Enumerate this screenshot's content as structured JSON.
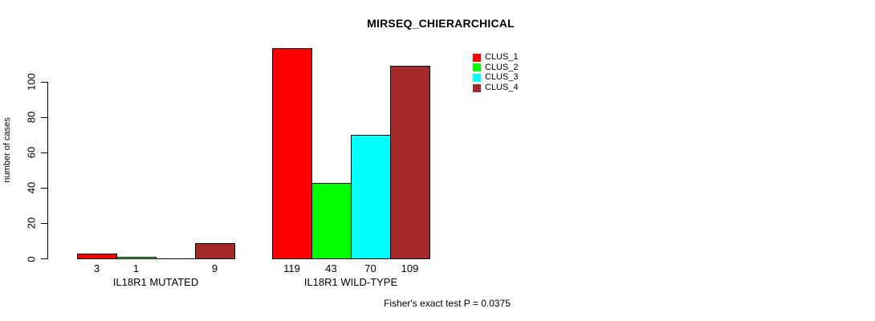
{
  "chart_data": {
    "type": "bar",
    "title": "MIRSEQ_CHIERARCHICAL",
    "ylabel": "number of cases",
    "xlabel": "",
    "ylim": [
      0,
      100
    ],
    "yticks": [
      0,
      20,
      40,
      60,
      80,
      100
    ],
    "grid": false,
    "legend_position": "top-right",
    "annotation": "Fisher's exact test P = 0.0375",
    "series": [
      {
        "name": "CLUS_1",
        "color": "#FF0000"
      },
      {
        "name": "CLUS_2",
        "color": "#00FF00"
      },
      {
        "name": "CLUS_3",
        "color": "#00FFFF"
      },
      {
        "name": "CLUS_4",
        "color": "#A52A2A"
      }
    ],
    "groups": [
      {
        "label": "IL18R1 MUTATED",
        "values": [
          3,
          1,
          0,
          9
        ],
        "value_labels": [
          "3",
          "1",
          "",
          "9"
        ]
      },
      {
        "label": "IL18R1 WILD-TYPE",
        "values": [
          119,
          43,
          70,
          109
        ],
        "value_labels": [
          "119",
          "43",
          "70",
          "109"
        ]
      }
    ]
  }
}
